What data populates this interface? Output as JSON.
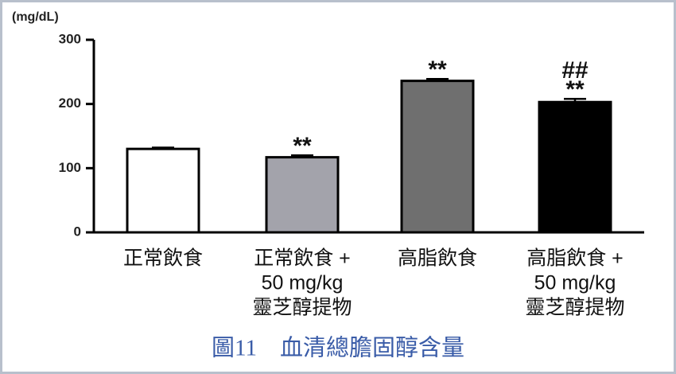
{
  "chart_data": {
    "type": "bar",
    "ylabel": "(mg/dL)",
    "categories": [
      [
        "正常飲食"
      ],
      [
        "正常飲食 +",
        "50 mg/kg",
        "靈芝醇提物"
      ],
      [
        "高脂飲食"
      ],
      [
        "高脂飲食 +",
        "50 mg/kg",
        "靈芝醇提物"
      ]
    ],
    "values": [
      130,
      117,
      236,
      203
    ],
    "errors": [
      2,
      3,
      3,
      5
    ],
    "colors": [
      "#ffffff",
      "#a3a3ab",
      "#6f6f6f",
      "#000000"
    ],
    "annotations": [
      null,
      [
        "**"
      ],
      [
        "**"
      ],
      [
        "##",
        "**"
      ]
    ],
    "ylim": [
      0,
      300
    ],
    "yticks": [
      0,
      100,
      200,
      300
    ]
  },
  "caption": "圖11　血清總膽固醇含量"
}
